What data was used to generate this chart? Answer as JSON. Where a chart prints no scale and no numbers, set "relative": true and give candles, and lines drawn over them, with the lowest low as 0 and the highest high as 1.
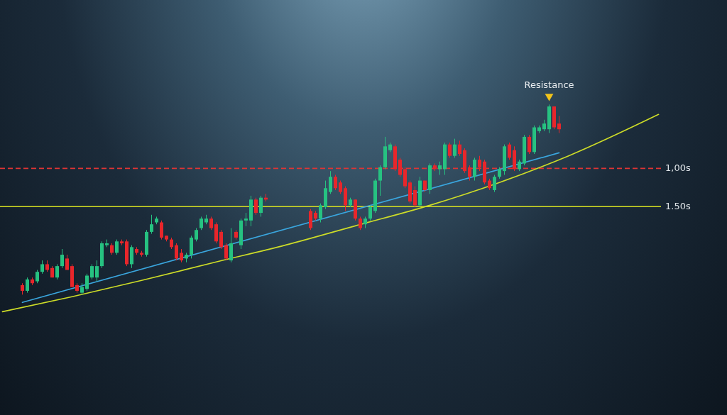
{
  "chart_data": {
    "type": "candlestick",
    "relative": true,
    "tick_labels": false,
    "categories": [
      null,
      null,
      null,
      null,
      null,
      null,
      null,
      null,
      null,
      null,
      null,
      null,
      null,
      null,
      null,
      null,
      null,
      null,
      null,
      null,
      null,
      null,
      null,
      null,
      null,
      null,
      null,
      null,
      null,
      null,
      null,
      null,
      null,
      null,
      null,
      null,
      null,
      null,
      null,
      null,
      null,
      null,
      null,
      null,
      null,
      null,
      null,
      null,
      null,
      null,
      null,
      null,
      null,
      null,
      null,
      null,
      null,
      null,
      null,
      null,
      null,
      null,
      null,
      null,
      null,
      null,
      null,
      null,
      null,
      null,
      null,
      null,
      null,
      null,
      null,
      null,
      null,
      null,
      null,
      null,
      null,
      null,
      null,
      null,
      null,
      null,
      null,
      null,
      null,
      null,
      null,
      null,
      null,
      null,
      null,
      null,
      null,
      null,
      null,
      null,
      null,
      null,
      null,
      null,
      null,
      null,
      null,
      null,
      null,
      null,
      null,
      null,
      null,
      null,
      null,
      null,
      null,
      null,
      null,
      null,
      null,
      null,
      null,
      null,
      null,
      null,
      null,
      null,
      null,
      null,
      null,
      null,
      null
    ],
    "series": [
      {
        "type": "candlestick",
        "ohlc": [
          null,
          null,
          null,
          null,
          [
            0.05,
            0.06,
            0.0,
            0.02
          ],
          [
            0.02,
            0.09,
            0.01,
            0.08
          ],
          [
            0.08,
            0.09,
            0.05,
            0.06
          ],
          [
            0.07,
            0.13,
            0.06,
            0.12
          ],
          [
            0.12,
            0.18,
            0.11,
            0.16
          ],
          [
            0.16,
            0.18,
            0.12,
            0.13
          ],
          [
            0.14,
            0.15,
            0.09,
            0.09
          ],
          [
            0.09,
            0.16,
            0.08,
            0.15
          ],
          [
            0.15,
            0.24,
            0.14,
            0.21
          ],
          [
            0.19,
            0.21,
            0.13,
            0.13
          ],
          [
            0.15,
            0.16,
            0.04,
            0.04
          ],
          [
            0.05,
            0.06,
            0.01,
            0.02
          ],
          [
            0.01,
            0.06,
            0.0,
            0.04
          ],
          [
            0.03,
            0.11,
            0.02,
            0.1
          ],
          [
            0.09,
            0.16,
            0.08,
            0.15
          ],
          [
            0.09,
            0.18,
            0.07,
            0.15
          ],
          [
            0.15,
            0.28,
            0.14,
            0.27
          ],
          [
            0.26,
            0.29,
            0.25,
            0.27
          ],
          [
            0.26,
            0.27,
            0.21,
            0.22
          ],
          [
            0.22,
            0.29,
            0.21,
            0.28
          ],
          [
            0.28,
            0.29,
            0.26,
            0.27
          ],
          [
            0.28,
            0.29,
            0.15,
            0.16
          ],
          [
            0.16,
            0.26,
            0.14,
            0.25
          ],
          [
            0.24,
            0.25,
            0.21,
            0.22
          ],
          [
            0.22,
            0.23,
            0.2,
            0.21
          ],
          [
            0.21,
            0.34,
            0.2,
            0.33
          ],
          [
            0.33,
            0.42,
            0.32,
            0.37
          ],
          [
            0.38,
            0.41,
            0.37,
            0.4
          ],
          [
            0.38,
            0.39,
            0.29,
            0.3
          ],
          [
            0.31,
            0.31,
            0.28,
            0.29
          ],
          [
            0.29,
            0.3,
            0.24,
            0.25
          ],
          [
            0.26,
            0.27,
            0.18,
            0.19
          ],
          [
            0.22,
            0.24,
            0.17,
            0.18
          ],
          [
            0.19,
            0.22,
            0.17,
            0.21
          ],
          [
            0.21,
            0.31,
            0.19,
            0.3
          ],
          [
            0.29,
            0.35,
            0.28,
            0.34
          ],
          [
            0.35,
            0.41,
            0.34,
            0.4
          ],
          [
            0.38,
            0.42,
            0.37,
            0.4
          ],
          [
            0.4,
            0.41,
            0.34,
            0.35
          ],
          [
            0.37,
            0.38,
            0.27,
            0.28
          ],
          [
            0.33,
            0.34,
            0.24,
            0.25
          ],
          [
            0.26,
            0.27,
            0.18,
            0.19
          ],
          [
            0.18,
            0.35,
            0.17,
            0.27
          ],
          [
            0.33,
            0.34,
            0.29,
            0.3
          ],
          [
            0.26,
            0.4,
            0.24,
            0.39
          ],
          [
            0.39,
            0.43,
            0.36,
            0.4
          ],
          [
            0.39,
            0.52,
            0.36,
            0.5
          ],
          [
            0.5,
            0.51,
            0.42,
            0.43
          ],
          [
            0.43,
            0.52,
            0.41,
            0.51
          ],
          [
            0.51,
            0.53,
            0.49,
            0.5
          ],
          null,
          null,
          null,
          null,
          null,
          null,
          null,
          null,
          [
            0.44,
            0.45,
            0.34,
            0.35
          ],
          [
            0.43,
            0.44,
            0.39,
            0.4
          ],
          [
            0.4,
            0.48,
            0.38,
            0.47
          ],
          [
            0.46,
            0.6,
            0.45,
            0.56
          ],
          [
            0.54,
            0.65,
            0.53,
            0.62
          ],
          [
            0.62,
            0.63,
            0.55,
            0.56
          ],
          [
            0.59,
            0.6,
            0.53,
            0.54
          ],
          [
            0.56,
            0.57,
            0.44,
            0.47
          ],
          [
            0.47,
            0.51,
            0.46,
            0.5
          ],
          [
            0.5,
            0.5,
            0.39,
            0.4
          ],
          [
            0.4,
            0.41,
            0.34,
            0.35
          ],
          [
            0.37,
            0.41,
            0.35,
            0.4
          ],
          [
            0.4,
            0.47,
            0.39,
            0.46
          ],
          [
            0.44,
            0.61,
            0.43,
            0.6
          ],
          [
            0.6,
            0.68,
            0.52,
            0.67
          ],
          [
            0.67,
            0.83,
            0.66,
            0.78
          ],
          [
            0.76,
            0.8,
            0.75,
            0.79
          ],
          [
            0.78,
            0.79,
            0.65,
            0.66
          ],
          [
            0.71,
            0.72,
            0.62,
            0.63
          ],
          [
            0.66,
            0.67,
            0.56,
            0.57
          ],
          [
            0.59,
            0.6,
            0.48,
            0.49
          ],
          [
            0.55,
            0.57,
            0.46,
            0.47
          ],
          [
            0.47,
            0.62,
            0.46,
            0.6
          ],
          [
            0.6,
            0.6,
            0.54,
            0.55
          ],
          [
            0.55,
            0.69,
            0.53,
            0.68
          ],
          [
            0.68,
            0.69,
            0.65,
            0.66
          ],
          [
            0.66,
            0.7,
            0.63,
            0.68
          ],
          [
            0.66,
            0.8,
            0.63,
            0.79
          ],
          [
            0.79,
            0.8,
            0.72,
            0.73
          ],
          [
            0.73,
            0.82,
            0.72,
            0.79
          ],
          [
            0.79,
            0.81,
            0.73,
            0.74
          ],
          [
            0.76,
            0.77,
            0.64,
            0.65
          ],
          [
            0.67,
            0.68,
            0.6,
            0.62
          ],
          [
            0.62,
            0.72,
            0.6,
            0.71
          ],
          [
            0.71,
            0.73,
            0.65,
            0.67
          ],
          [
            0.7,
            0.71,
            0.58,
            0.59
          ],
          [
            0.6,
            0.61,
            0.55,
            0.56
          ],
          [
            0.55,
            0.63,
            0.54,
            0.62
          ],
          [
            0.62,
            0.67,
            0.61,
            0.66
          ],
          [
            0.65,
            0.79,
            0.63,
            0.78
          ],
          [
            0.79,
            0.8,
            0.71,
            0.72
          ],
          [
            0.76,
            0.78,
            0.65,
            0.66
          ],
          [
            0.66,
            0.71,
            0.65,
            0.7
          ],
          [
            0.69,
            0.84,
            0.68,
            0.83
          ],
          [
            0.83,
            0.84,
            0.74,
            0.75
          ],
          [
            0.75,
            0.89,
            0.74,
            0.88
          ],
          [
            0.86,
            0.89,
            0.85,
            0.88
          ],
          [
            0.87,
            0.92,
            0.86,
            0.9
          ],
          [
            0.87,
            1.0,
            0.85,
            0.99
          ],
          [
            0.99,
            0.99,
            0.87,
            0.88
          ],
          [
            0.9,
            0.94,
            0.85,
            0.87
          ],
          null,
          null,
          null,
          null,
          null,
          null,
          null,
          null,
          null,
          null,
          null,
          null,
          null,
          null,
          null,
          null,
          null,
          null,
          null,
          null
        ],
        "colors": [
          null,
          null,
          null,
          null,
          "#e8262b",
          "#26c281",
          "#e8262b",
          "#26c281",
          "#26c281",
          "#e8262b",
          "#e8262b",
          "#26c281",
          "#26c281",
          "#e8262b",
          "#e8262b",
          "#e8262b",
          "#26c281",
          "#26c281",
          "#26c281",
          "#26c281",
          "#26c281",
          "#26c281",
          "#e8262b",
          "#26c281",
          "#e8262b",
          "#e8262b",
          "#26c281",
          "#e8262b",
          "#e8262b",
          "#26c281",
          "#26c281",
          "#26c281",
          "#e8262b",
          "#e8262b",
          "#e8262b",
          "#e8262b",
          "#e8262b",
          "#26c281",
          "#26c281",
          "#26c281",
          "#26c281",
          "#26c281",
          "#e8262b",
          "#e8262b",
          "#e8262b",
          "#e8262b",
          "#26c281",
          "#e8262b",
          "#26c281",
          "#26c281",
          "#26c281",
          "#e8262b",
          "#26c281",
          "#e8262b",
          null,
          null,
          null,
          null,
          null,
          null,
          null,
          null,
          "#e8262b",
          "#e8262b",
          "#26c281",
          "#26c281",
          "#26c281",
          "#e8262b",
          "#e8262b",
          "#e8262b",
          "#26c281",
          "#e8262b",
          "#e8262b",
          "#26c281",
          "#26c281",
          "#26c281",
          "#26c281",
          "#26c281",
          "#26c281",
          "#e8262b",
          "#e8262b",
          "#e8262b",
          "#e8262b",
          "#e8262b",
          "#26c281",
          "#e8262b",
          "#26c281",
          "#e8262b",
          "#26c281",
          "#26c281",
          "#e8262b",
          "#26c281",
          "#e8262b",
          "#e8262b",
          "#e8262b",
          "#26c281",
          "#e8262b",
          "#e8262b",
          "#e8262b",
          "#26c281",
          "#26c281",
          "#26c281",
          "#e8262b",
          "#e8262b",
          "#26c281",
          "#26c281",
          "#e8262b",
          "#26c281",
          "#26c281",
          "#26c281",
          "#26c281",
          "#e8262b",
          "#e8262b",
          null,
          null,
          null,
          null,
          null,
          null,
          null,
          null,
          null,
          null,
          null,
          null,
          null,
          null,
          null,
          null,
          null,
          null,
          null,
          null
        ]
      },
      {
        "type": "line",
        "color": "#3aa6de",
        "values": [
          null,
          null,
          null,
          null,
          -0.041,
          null,
          null,
          null,
          null,
          null,
          null,
          null,
          null,
          null,
          null,
          null,
          null,
          null,
          null,
          null,
          null,
          null,
          null,
          null,
          null,
          null,
          null,
          null,
          null,
          null,
          null,
          null,
          null,
          null,
          null,
          null,
          null,
          null,
          null,
          null,
          null,
          null,
          null,
          null,
          null,
          null,
          null,
          null,
          null,
          null,
          null,
          null,
          null,
          null,
          null,
          null,
          null,
          null,
          null,
          null,
          null,
          null,
          null,
          null,
          null,
          null,
          null,
          null,
          null,
          null,
          null,
          null,
          null,
          null,
          null,
          null,
          null,
          null,
          null,
          null,
          null,
          null,
          null,
          null,
          null,
          null,
          null,
          null,
          null,
          null,
          null,
          null,
          null,
          null,
          null,
          null,
          null,
          null,
          null,
          null,
          null,
          null,
          null,
          null,
          null,
          null,
          null,
          null,
          null,
          null,
          null,
          null,
          0.746,
          null,
          null,
          null,
          null,
          null,
          null,
          null,
          null,
          null,
          null,
          null,
          null,
          null,
          null,
          null,
          null,
          null,
          null,
          null,
          null
        ]
      },
      {
        "type": "line",
        "color": "#cddc28",
        "values": [
          -0.09,
          null,
          null,
          null,
          null,
          null,
          null,
          null,
          null,
          null,
          null,
          null,
          null,
          null,
          -0.011,
          null,
          null,
          null,
          null,
          null,
          null,
          null,
          null,
          null,
          null,
          null,
          null,
          null,
          0.075,
          null,
          null,
          null,
          null,
          null,
          null,
          null,
          null,
          null,
          null,
          null,
          null,
          null,
          null,
          0.172,
          null,
          null,
          null,
          null,
          null,
          null,
          null,
          null,
          null,
          null,
          null,
          null,
          null,
          0.261,
          null,
          null,
          null,
          null,
          null,
          null,
          null,
          null,
          null,
          null,
          null,
          null,
          null,
          0.362,
          null,
          null,
          null,
          null,
          null,
          null,
          null,
          null,
          null,
          null,
          null,
          null,
          null,
          null,
          0.47,
          null,
          null,
          null,
          null,
          null,
          null,
          null,
          null,
          null,
          null,
          null,
          null,
          null,
          0.59,
          null,
          null,
          null,
          null,
          null,
          null,
          null,
          null,
          null,
          null,
          null,
          null,
          null,
          0.731,
          null,
          null,
          null,
          null,
          null,
          null,
          null,
          null,
          null,
          null,
          null,
          null,
          null,
          null,
          null,
          null,
          null,
          0.948
        ]
      }
    ],
    "ref_lines": [
      {
        "axis": "y",
        "value": 0.664,
        "label": "1,00s",
        "color": "#e03434",
        "line_style": "dashed"
      },
      {
        "axis": "y",
        "value": 0.463,
        "label": "1.50s",
        "color": "#d6e021",
        "line_style": "solid"
      }
    ],
    "annotations": [
      "Resistance"
    ]
  }
}
